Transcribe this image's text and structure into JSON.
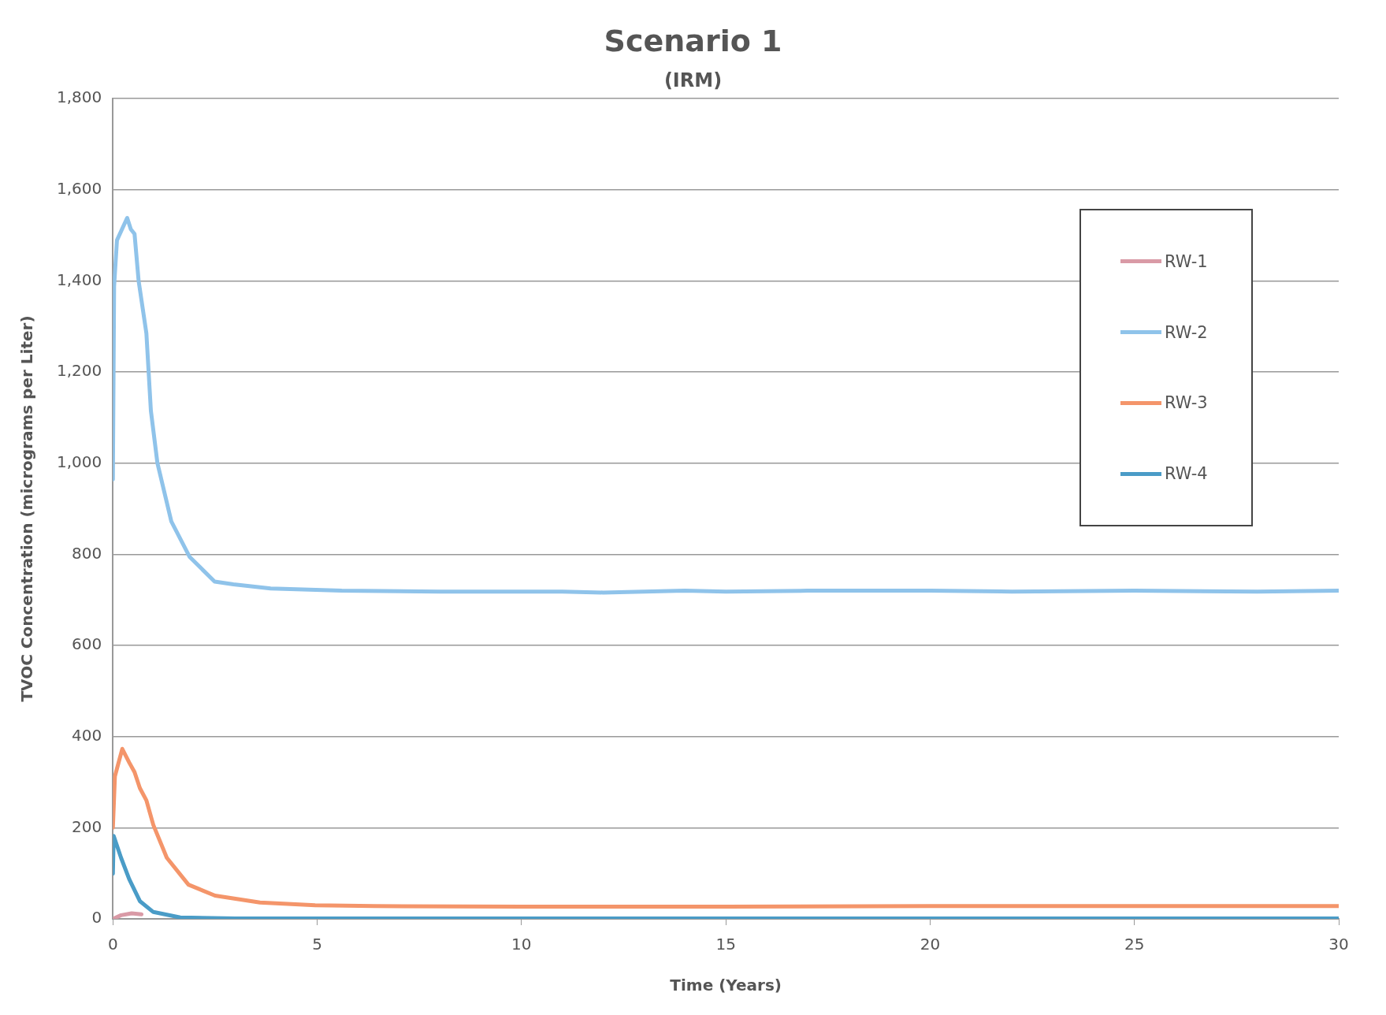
{
  "chart_data": {
    "type": "line",
    "title": "Scenario 1",
    "subtitle": "(IRM)",
    "xlabel": "Time (Years)",
    "ylabel": "TVOC Concentration (micrograms per Liter)",
    "xlim": [
      0,
      30
    ],
    "xticks": [
      0,
      5,
      10,
      15,
      20,
      25,
      30
    ],
    "ylim": [
      0,
      1800
    ],
    "yticks": [
      {
        "value": 0,
        "label": "0"
      },
      {
        "value": 200,
        "label": "200"
      },
      {
        "value": 400,
        "label": "400"
      },
      {
        "value": 600,
        "label": "600"
      },
      {
        "value": 800,
        "label": "800"
      },
      {
        "value": 1000,
        "label": "1,000"
      },
      {
        "value": 1200,
        "label": "1,200"
      },
      {
        "value": 1400,
        "label": "1,400"
      },
      {
        "value": 1600,
        "label": "1,600"
      },
      {
        "value": 1800,
        "label": "1,800"
      }
    ],
    "grid": "y",
    "legend": "top right",
    "marker": "none",
    "line_style": "solid",
    "series": [
      {
        "name": "RW-1",
        "color": "#d99aa6",
        "x": [
          0,
          0.2,
          0.46,
          0.7
        ],
        "values": [
          0,
          8,
          12,
          10
        ]
      },
      {
        "name": "RW-2",
        "color": "#8fc3ea",
        "x": [
          0,
          0.03,
          0.1,
          0.35,
          0.44,
          0.53,
          0.63,
          0.82,
          0.93,
          1.09,
          1.43,
          1.88,
          2.49,
          2.95,
          3.86,
          5.6,
          8,
          11,
          12,
          14,
          15,
          17,
          20,
          22,
          25,
          28,
          30
        ],
        "values": [
          964,
          1388,
          1489,
          1538,
          1513,
          1503,
          1400,
          1285,
          1115,
          1000,
          872,
          794,
          740,
          734,
          725,
          720,
          718,
          718,
          716,
          720,
          718,
          720,
          720,
          718,
          720,
          718,
          720
        ]
      },
      {
        "name": "RW-3",
        "color": "#f4956a",
        "x": [
          0,
          0.05,
          0.23,
          0.4,
          0.53,
          0.66,
          0.82,
          0.99,
          1.32,
          1.85,
          2.5,
          3.6,
          4.95,
          6.4,
          10,
          15,
          20,
          25,
          30
        ],
        "values": [
          200,
          313,
          373,
          343,
          322,
          287,
          260,
          206,
          134,
          75,
          51,
          36,
          30,
          28,
          27,
          27,
          28,
          28,
          28
        ]
      },
      {
        "name": "RW-4",
        "color": "#4a9cc7",
        "x": [
          0,
          0.02,
          0.2,
          0.4,
          0.66,
          0.99,
          1.65,
          3,
          10,
          20,
          30
        ],
        "values": [
          99,
          182,
          134,
          87,
          39,
          15,
          3,
          1,
          1,
          1,
          1
        ]
      }
    ]
  }
}
